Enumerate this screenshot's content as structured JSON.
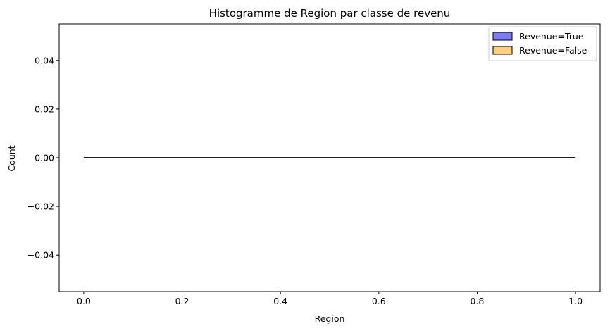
{
  "chart_data": {
    "type": "bar",
    "title": "Histogramme de Region par classe de revenu",
    "xlabel": "Region",
    "ylabel": "Count",
    "xlim": [
      -0.05,
      1.05
    ],
    "ylim": [
      -0.055,
      0.055
    ],
    "x_ticks": [
      0.0,
      0.2,
      0.4,
      0.6,
      0.8,
      1.0
    ],
    "x_tick_labels": [
      "0.0",
      "0.2",
      "0.4",
      "0.6",
      "0.8",
      "1.0"
    ],
    "y_ticks": [
      -0.04,
      -0.02,
      0.0,
      0.02,
      0.04
    ],
    "y_tick_labels": [
      "−0.04",
      "−0.02",
      "0.00",
      "0.02",
      "0.04"
    ],
    "grid": false,
    "legend_position": "top-right",
    "series": [
      {
        "name": "Revenue=True",
        "color": "#7b7bf5",
        "bins": [
          {
            "x0": 0.0,
            "x1": 1.0,
            "count": 0
          }
        ]
      },
      {
        "name": "Revenue=False",
        "color": "#fdcf7c",
        "bins": [
          {
            "x0": 0.0,
            "x1": 1.0,
            "count": 0
          }
        ]
      }
    ]
  }
}
